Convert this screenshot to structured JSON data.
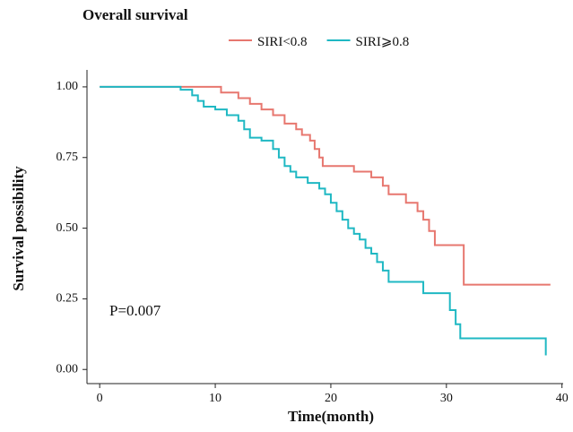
{
  "chart_data": {
    "type": "step",
    "title": "Overall survival",
    "x_label": "Time(month)",
    "y_label": "Survival possibility",
    "annotation": "P=0.007",
    "xlim": [
      -1.1,
      40.1
    ],
    "ylim": [
      -0.05,
      1.06
    ],
    "xticks": [
      0,
      10,
      20,
      30,
      40
    ],
    "yticks": [
      {
        "value": 0,
        "label": "0.00"
      },
      {
        "value": 0.25,
        "label": "0.25"
      },
      {
        "value": 0.5,
        "label": "0.50"
      },
      {
        "value": 0.75,
        "label": "0.75"
      },
      {
        "value": 1,
        "label": "1.00"
      }
    ],
    "legend": "top",
    "series": [
      {
        "name": "SIRI<0.8",
        "color": "#e7776f",
        "x": [
          0,
          10.5,
          12,
          13,
          14,
          15,
          16,
          17,
          17.5,
          18.2,
          18.6,
          19,
          19.3,
          22,
          23.5,
          24.5,
          25,
          26.5,
          27.5,
          28,
          28.5,
          29,
          31.5,
          39
        ],
        "values": [
          1,
          0.98,
          0.96,
          0.94,
          0.92,
          0.9,
          0.87,
          0.85,
          0.83,
          0.81,
          0.78,
          0.75,
          0.72,
          0.7,
          0.68,
          0.65,
          0.62,
          0.59,
          0.56,
          0.53,
          0.49,
          0.44,
          0.3,
          0.3
        ]
      },
      {
        "name": "SIRI⩾0.8",
        "color": "#1fb8c3",
        "x": [
          0,
          7,
          8,
          8.5,
          9,
          10,
          11,
          12,
          12.5,
          13,
          14,
          15,
          15.5,
          16,
          16.5,
          17,
          18,
          19,
          19.5,
          20,
          20.5,
          21,
          21.5,
          22,
          22.5,
          23,
          23.5,
          24,
          24.5,
          25,
          28,
          30.3,
          30.8,
          31.2,
          38.6
        ],
        "values": [
          1,
          0.99,
          0.97,
          0.95,
          0.93,
          0.92,
          0.9,
          0.88,
          0.85,
          0.82,
          0.81,
          0.78,
          0.75,
          0.72,
          0.7,
          0.68,
          0.66,
          0.64,
          0.62,
          0.59,
          0.56,
          0.53,
          0.5,
          0.48,
          0.46,
          0.43,
          0.41,
          0.38,
          0.35,
          0.31,
          0.27,
          0.21,
          0.16,
          0.11,
          0.05
        ]
      }
    ]
  }
}
